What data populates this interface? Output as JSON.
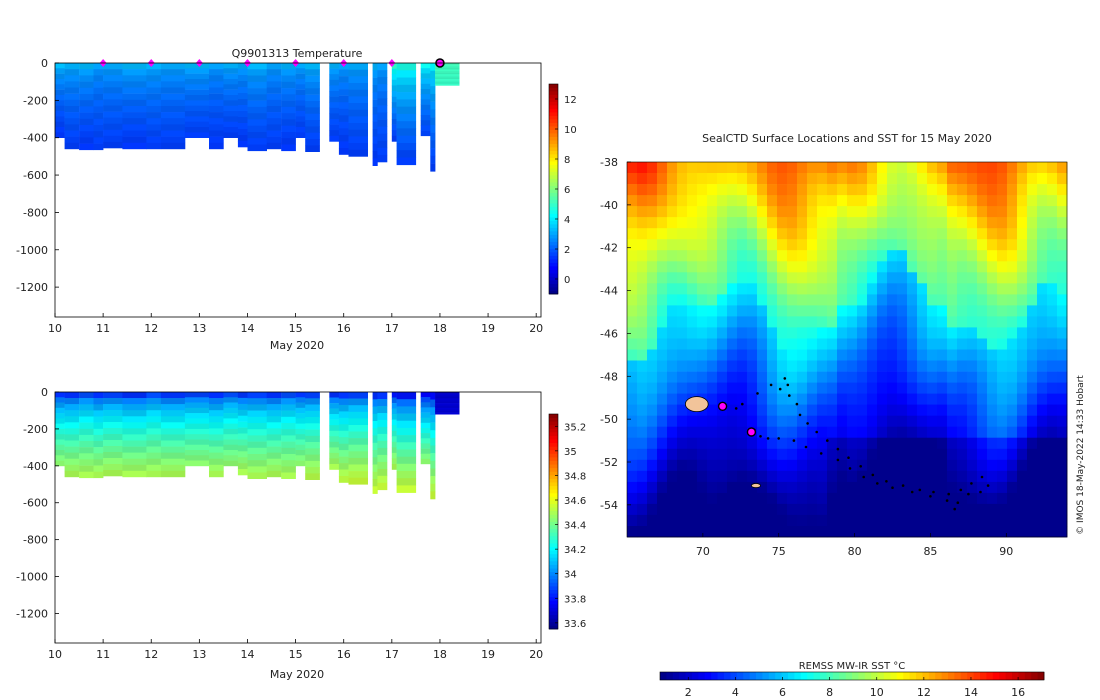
{
  "chart_data": [
    {
      "type": "heatmap",
      "id": "temperature",
      "title": "Q9901313  Temperature",
      "xlabel": "May 2020",
      "ylabel": "",
      "x_ticks": [
        "10",
        "11",
        "12",
        "13",
        "14",
        "15",
        "16",
        "17",
        "18",
        "19",
        "20"
      ],
      "xlim": [
        10,
        20.1
      ],
      "y_ticks": [
        "0",
        "-200",
        "-400",
        "-600",
        "-800",
        "-1000",
        "-1200"
      ],
      "ylim": [
        -1360,
        0
      ],
      "profile_markers_day": [
        11,
        12,
        13,
        14,
        15,
        16,
        17
      ],
      "current_profile_day": 18,
      "colorbar": {
        "ticks": [
          "0",
          "2",
          "4",
          "6",
          "8",
          "10",
          "12"
        ],
        "range": [
          -1,
          13
        ]
      },
      "profiles": [
        {
          "t0": 10.0,
          "t1": 10.2,
          "depth": 400,
          "surf": 3.4,
          "deep": 1.5
        },
        {
          "t0": 10.2,
          "t1": 10.5,
          "depth": 460,
          "surf": 3.2,
          "deep": 1.6
        },
        {
          "t0": 10.5,
          "t1": 10.8,
          "depth": 465,
          "surf": 3.3,
          "deep": 1.5
        },
        {
          "t0": 10.8,
          "t1": 11.0,
          "depth": 465,
          "surf": 3.0,
          "deep": 1.6
        },
        {
          "t0": 11.0,
          "t1": 11.4,
          "depth": 455,
          "surf": 3.1,
          "deep": 1.6
        },
        {
          "t0": 11.4,
          "t1": 11.9,
          "depth": 460,
          "surf": 3.3,
          "deep": 1.5
        },
        {
          "t0": 11.9,
          "t1": 12.2,
          "depth": 460,
          "surf": 3.2,
          "deep": 1.6
        },
        {
          "t0": 12.2,
          "t1": 12.7,
          "depth": 460,
          "surf": 3.1,
          "deep": 1.6
        },
        {
          "t0": 12.7,
          "t1": 13.2,
          "depth": 400,
          "surf": 3.3,
          "deep": 1.6
        },
        {
          "t0": 13.2,
          "t1": 13.5,
          "depth": 460,
          "surf": 3.0,
          "deep": 1.5
        },
        {
          "t0": 13.5,
          "t1": 13.8,
          "depth": 400,
          "surf": 3.2,
          "deep": 1.6
        },
        {
          "t0": 13.8,
          "t1": 14.0,
          "depth": 450,
          "surf": 3.1,
          "deep": 1.5
        },
        {
          "t0": 14.0,
          "t1": 14.4,
          "depth": 470,
          "surf": 3.3,
          "deep": 1.6
        },
        {
          "t0": 14.4,
          "t1": 14.7,
          "depth": 460,
          "surf": 3.0,
          "deep": 1.6
        },
        {
          "t0": 14.7,
          "t1": 15.0,
          "depth": 470,
          "surf": 3.2,
          "deep": 1.5
        },
        {
          "t0": 15.0,
          "t1": 15.2,
          "depth": 400,
          "surf": 3.1,
          "deep": 1.6
        },
        {
          "t0": 15.2,
          "t1": 15.5,
          "depth": 475,
          "surf": 3.3,
          "deep": 1.6
        },
        {
          "t0": 15.7,
          "t1": 15.9,
          "depth": 420,
          "surf": 3.2,
          "deep": 1.6
        },
        {
          "t0": 15.9,
          "t1": 16.1,
          "depth": 490,
          "surf": 3.0,
          "deep": 1.5
        },
        {
          "t0": 16.1,
          "t1": 16.5,
          "depth": 500,
          "surf": 3.1,
          "deep": 1.6
        },
        {
          "t0": 16.6,
          "t1": 16.7,
          "depth": 550,
          "surf": 3.2,
          "deep": 1.5
        },
        {
          "t0": 16.7,
          "t1": 16.9,
          "depth": 530,
          "surf": 3.0,
          "deep": 1.6
        },
        {
          "t0": 17.0,
          "t1": 17.1,
          "depth": 420,
          "surf": 5.0,
          "deep": 1.6
        },
        {
          "t0": 17.1,
          "t1": 17.5,
          "depth": 545,
          "surf": 4.6,
          "deep": 1.6
        },
        {
          "t0": 17.6,
          "t1": 17.8,
          "depth": 390,
          "surf": 4.4,
          "deep": 1.7
        },
        {
          "t0": 17.8,
          "t1": 17.9,
          "depth": 580,
          "surf": 4.2,
          "deep": 1.6
        },
        {
          "t0": 17.9,
          "t1": 18.4,
          "depth": 120,
          "surf": 5.2,
          "deep": 5.0
        }
      ]
    },
    {
      "type": "heatmap",
      "id": "salinity",
      "title": "",
      "xlabel": "May 2020",
      "ylabel": "",
      "x_ticks": [
        "10",
        "11",
        "12",
        "13",
        "14",
        "15",
        "16",
        "17",
        "18",
        "19",
        "20"
      ],
      "xlim": [
        10,
        20.1
      ],
      "y_ticks": [
        "0",
        "-200",
        "-400",
        "-600",
        "-800",
        "-1000",
        "-1200"
      ],
      "ylim": [
        -1360,
        0
      ],
      "colorbar": {
        "ticks": [
          "33.6",
          "33.8",
          "34",
          "34.2",
          "34.4",
          "34.6",
          "34.8",
          "35",
          "35.2"
        ],
        "range": [
          33.55,
          35.3
        ]
      },
      "profiles": [
        {
          "t0": 10.0,
          "t1": 10.2,
          "depth": 400,
          "surf": 33.85,
          "deep": 34.45
        },
        {
          "t0": 10.2,
          "t1": 10.5,
          "depth": 460,
          "surf": 33.85,
          "deep": 34.5
        },
        {
          "t0": 10.5,
          "t1": 10.8,
          "depth": 465,
          "surf": 33.9,
          "deep": 34.5
        },
        {
          "t0": 10.8,
          "t1": 11.0,
          "depth": 465,
          "surf": 33.85,
          "deep": 34.5
        },
        {
          "t0": 11.0,
          "t1": 11.4,
          "depth": 455,
          "surf": 33.88,
          "deep": 34.5
        },
        {
          "t0": 11.4,
          "t1": 11.9,
          "depth": 460,
          "surf": 33.85,
          "deep": 34.5
        },
        {
          "t0": 11.9,
          "t1": 12.2,
          "depth": 460,
          "surf": 33.9,
          "deep": 34.5
        },
        {
          "t0": 12.2,
          "t1": 12.7,
          "depth": 460,
          "surf": 33.86,
          "deep": 34.5
        },
        {
          "t0": 12.7,
          "t1": 13.2,
          "depth": 400,
          "surf": 33.88,
          "deep": 34.45
        },
        {
          "t0": 13.2,
          "t1": 13.5,
          "depth": 460,
          "surf": 33.85,
          "deep": 34.5
        },
        {
          "t0": 13.5,
          "t1": 13.8,
          "depth": 400,
          "surf": 33.9,
          "deep": 34.45
        },
        {
          "t0": 13.8,
          "t1": 14.0,
          "depth": 450,
          "surf": 33.86,
          "deep": 34.5
        },
        {
          "t0": 14.0,
          "t1": 14.4,
          "depth": 470,
          "surf": 33.88,
          "deep": 34.5
        },
        {
          "t0": 14.4,
          "t1": 14.7,
          "depth": 460,
          "surf": 33.85,
          "deep": 34.5
        },
        {
          "t0": 14.7,
          "t1": 15.0,
          "depth": 470,
          "surf": 33.9,
          "deep": 34.5
        },
        {
          "t0": 15.0,
          "t1": 15.2,
          "depth": 400,
          "surf": 33.86,
          "deep": 34.45
        },
        {
          "t0": 15.2,
          "t1": 15.5,
          "depth": 475,
          "surf": 33.88,
          "deep": 34.52
        },
        {
          "t0": 15.7,
          "t1": 15.9,
          "depth": 420,
          "surf": 33.85,
          "deep": 34.5
        },
        {
          "t0": 15.9,
          "t1": 16.1,
          "depth": 490,
          "surf": 33.86,
          "deep": 34.53
        },
        {
          "t0": 16.1,
          "t1": 16.5,
          "depth": 500,
          "surf": 33.88,
          "deep": 34.55
        },
        {
          "t0": 16.6,
          "t1": 16.7,
          "depth": 550,
          "surf": 33.85,
          "deep": 34.55
        },
        {
          "t0": 16.7,
          "t1": 16.9,
          "depth": 530,
          "surf": 33.86,
          "deep": 34.55
        },
        {
          "t0": 17.0,
          "t1": 17.1,
          "depth": 420,
          "surf": 33.8,
          "deep": 34.5
        },
        {
          "t0": 17.1,
          "t1": 17.5,
          "depth": 545,
          "surf": 33.8,
          "deep": 34.55
        },
        {
          "t0": 17.6,
          "t1": 17.8,
          "depth": 390,
          "surf": 33.75,
          "deep": 34.45
        },
        {
          "t0": 17.8,
          "t1": 17.9,
          "depth": 580,
          "surf": 33.78,
          "deep": 34.55
        },
        {
          "t0": 17.9,
          "t1": 18.4,
          "depth": 120,
          "surf": 33.68,
          "deep": 33.7
        }
      ]
    },
    {
      "type": "heatmap",
      "id": "sst-map",
      "title": "SealCTD Surface Locations and SST for 15 May 2020",
      "xlabel": "",
      "ylabel": "",
      "x_ticks": [
        "70",
        "75",
        "80",
        "85",
        "90"
      ],
      "xlim": [
        65,
        94
      ],
      "y_ticks": [
        "-38",
        "-40",
        "-42",
        "-44",
        "-46",
        "-48",
        "-50",
        "-52",
        "-54"
      ],
      "ylim": [
        -55.5,
        -38
      ],
      "colorbar_label": "REMSS MW-IR SST °C",
      "colorbar": {
        "ticks": [
          "2",
          "4",
          "6",
          "8",
          "10",
          "12",
          "14",
          "16"
        ],
        "range": [
          0.8,
          17.1
        ]
      },
      "latest_positions": [
        {
          "lon": 71.3,
          "lat": -49.4
        },
        {
          "lon": 73.2,
          "lat": -50.6
        }
      ],
      "track": [
        [
          71.3,
          -49.4
        ],
        [
          72.2,
          -49.5
        ],
        [
          72.6,
          -49.3
        ],
        [
          73.6,
          -48.8
        ],
        [
          74.5,
          -48.4
        ],
        [
          75.4,
          -48.1
        ],
        [
          75.6,
          -48.4
        ],
        [
          75.1,
          -48.6
        ],
        [
          75.7,
          -48.9
        ],
        [
          76.2,
          -49.3
        ],
        [
          76.4,
          -49.8
        ],
        [
          76.9,
          -50.2
        ],
        [
          77.5,
          -50.6
        ],
        [
          78.2,
          -51.0
        ],
        [
          78.9,
          -51.4
        ],
        [
          79.6,
          -51.8
        ],
        [
          80.4,
          -52.2
        ],
        [
          81.2,
          -52.6
        ],
        [
          82.1,
          -52.9
        ],
        [
          83.2,
          -53.1
        ],
        [
          84.3,
          -53.3
        ],
        [
          85.2,
          -53.4
        ],
        [
          86.2,
          -53.5
        ],
        [
          87.0,
          -53.3
        ],
        [
          87.7,
          -53.0
        ],
        [
          88.4,
          -52.7
        ],
        [
          88.8,
          -53.1
        ],
        [
          88.3,
          -53.4
        ],
        [
          87.5,
          -53.5
        ],
        [
          86.8,
          -53.9
        ],
        [
          86.6,
          -54.2
        ],
        [
          86.1,
          -53.8
        ],
        [
          85.0,
          -53.6
        ],
        [
          83.8,
          -53.4
        ],
        [
          82.5,
          -53.2
        ],
        [
          81.5,
          -53.0
        ],
        [
          80.6,
          -52.7
        ],
        [
          79.7,
          -52.3
        ],
        [
          78.9,
          -51.9
        ],
        [
          77.8,
          -51.6
        ],
        [
          76.8,
          -51.3
        ],
        [
          76.0,
          -51.0
        ],
        [
          75.0,
          -50.9
        ],
        [
          74.3,
          -50.9
        ],
        [
          73.8,
          -50.8
        ],
        [
          73.4,
          -50.5
        ]
      ],
      "land": [
        {
          "name": "kerguelen",
          "lon": 69.6,
          "lat": -49.3,
          "rx": 0.75,
          "ry": 0.35
        },
        {
          "name": "heard",
          "lon": 73.5,
          "lat": -53.1,
          "rx": 0.3,
          "ry": 0.1
        }
      ],
      "sst_field_note": "warm north (>12 °C at -38), polar front near -45, cold south (<3 °C at -54)"
    }
  ],
  "watermark": "© IMOS 18-May-2022 14:33 Hobart",
  "colors": {
    "marker_magenta": "#ff00ff",
    "track_black": "#000000",
    "land_fill": "#f2c49a"
  }
}
